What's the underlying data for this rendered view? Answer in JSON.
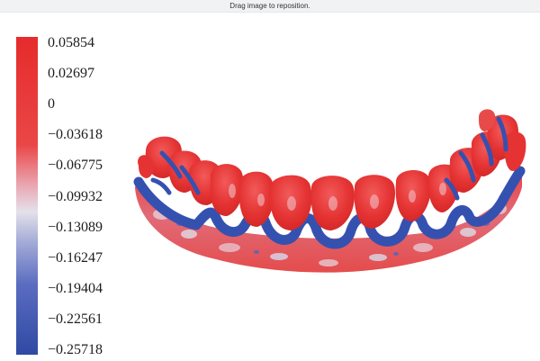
{
  "hint": {
    "text": "Drag image to reposition."
  },
  "colorbar": {
    "max_color": "#e62b2b",
    "mid_color": "#e8e5ec",
    "min_color": "#2f4aa3",
    "ticks": [
      {
        "label": "0.05854"
      },
      {
        "label": "0.02697"
      },
      {
        "label": "0"
      },
      {
        "label": "−0.03618"
      },
      {
        "label": "−0.06775"
      },
      {
        "label": "−0.09932"
      },
      {
        "label": "−0.13089"
      },
      {
        "label": "−0.16247"
      },
      {
        "label": "−0.19404"
      },
      {
        "label": "−0.22561"
      },
      {
        "label": "−0.25718"
      }
    ]
  },
  "model": {
    "positive_color": "#e53333",
    "negative_color": "#3551b0",
    "neutral_color": "#d9cfd8"
  }
}
